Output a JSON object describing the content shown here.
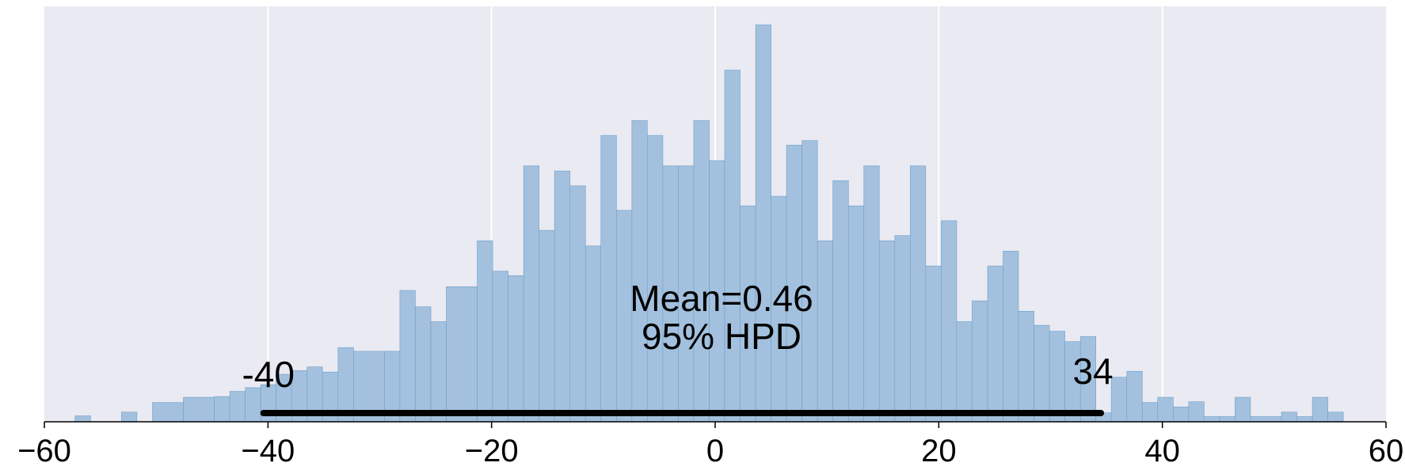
{
  "chart_data": {
    "type": "bar",
    "title": "",
    "xlabel": "",
    "ylabel": "",
    "xlim": [
      -60,
      60
    ],
    "ylim": [
      0,
      56
    ],
    "grid": true,
    "colors": {
      "background": "#eaeaf2",
      "bar_fill": "#a3c1de",
      "bar_edge": "#6f9fc8",
      "grid": "#ffffff",
      "hpd_line": "#000000"
    },
    "x_ticks": [
      -60,
      -40,
      -20,
      0,
      20,
      40,
      60
    ],
    "x_tick_labels": [
      "−60",
      "−40",
      "−20",
      "0",
      "20",
      "40",
      "60"
    ],
    "bins": [
      {
        "x0": -57.25,
        "x1": -55.87,
        "count": 0.8
      },
      {
        "x0": -53.1,
        "x1": -51.72,
        "count": 1.3
      },
      {
        "x0": -50.33,
        "x1": -47.57,
        "count": 2.6
      },
      {
        "x0": -47.57,
        "x1": -44.8,
        "count": 3.3
      },
      {
        "x0": -44.8,
        "x1": -43.42,
        "count": 3.4
      },
      {
        "x0": -43.42,
        "x1": -42.03,
        "count": 4.1
      },
      {
        "x0": -42.03,
        "x1": -40.65,
        "count": 4.6
      },
      {
        "x0": -40.65,
        "x1": -39.27,
        "count": 5.0
      },
      {
        "x0": -39.27,
        "x1": -37.88,
        "count": 6.4
      },
      {
        "x0": -37.88,
        "x1": -36.5,
        "count": 6.9
      },
      {
        "x0": -36.5,
        "x1": -35.12,
        "count": 7.4
      },
      {
        "x0": -35.12,
        "x1": -33.73,
        "count": 6.7
      },
      {
        "x0": -33.73,
        "x1": -32.35,
        "count": 10.0
      },
      {
        "x0": -32.35,
        "x1": -29.58,
        "count": 9.5
      },
      {
        "x0": -29.58,
        "x1": -28.2,
        "count": 9.5
      },
      {
        "x0": -28.2,
        "x1": -26.82,
        "count": 17.7
      },
      {
        "x0": -26.82,
        "x1": -25.43,
        "count": 15.5
      },
      {
        "x0": -25.43,
        "x1": -24.05,
        "count": 13.5
      },
      {
        "x0": -24.05,
        "x1": -21.28,
        "count": 18.2
      },
      {
        "x0": -21.28,
        "x1": -19.9,
        "count": 24.4
      },
      {
        "x0": -19.9,
        "x1": -18.52,
        "count": 20.3
      },
      {
        "x0": -18.52,
        "x1": -17.13,
        "count": 19.7
      },
      {
        "x0": -17.13,
        "x1": -15.75,
        "count": 34.5
      },
      {
        "x0": -15.75,
        "x1": -14.37,
        "count": 25.8
      },
      {
        "x0": -14.37,
        "x1": -12.98,
        "count": 33.8
      },
      {
        "x0": -12.98,
        "x1": -11.6,
        "count": 31.8
      },
      {
        "x0": -11.6,
        "x1": -10.22,
        "count": 23.7
      },
      {
        "x0": -10.22,
        "x1": -8.83,
        "count": 38.6
      },
      {
        "x0": -8.83,
        "x1": -7.45,
        "count": 28.5
      },
      {
        "x0": -7.45,
        "x1": -6.07,
        "count": 40.6
      },
      {
        "x0": -6.07,
        "x1": -4.68,
        "count": 38.6
      },
      {
        "x0": -4.68,
        "x1": -3.3,
        "count": 34.5
      },
      {
        "x0": -3.3,
        "x1": -1.92,
        "count": 34.5
      },
      {
        "x0": -1.92,
        "x1": -0.53,
        "count": 40.6
      },
      {
        "x0": -0.53,
        "x1": 0.85,
        "count": 35.2
      },
      {
        "x0": 0.85,
        "x1": 2.23,
        "count": 47.4
      },
      {
        "x0": 2.23,
        "x1": 3.62,
        "count": 29.1
      },
      {
        "x0": 3.62,
        "x1": 5.0,
        "count": 53.5
      },
      {
        "x0": 5.0,
        "x1": 6.38,
        "count": 30.4
      },
      {
        "x0": 6.38,
        "x1": 7.77,
        "count": 37.3
      },
      {
        "x0": 7.77,
        "x1": 9.15,
        "count": 37.9
      },
      {
        "x0": 9.15,
        "x1": 10.53,
        "count": 24.4
      },
      {
        "x0": 10.53,
        "x1": 11.92,
        "count": 32.5
      },
      {
        "x0": 11.92,
        "x1": 13.3,
        "count": 29.1
      },
      {
        "x0": 13.3,
        "x1": 14.68,
        "count": 34.5
      },
      {
        "x0": 14.68,
        "x1": 16.07,
        "count": 24.4
      },
      {
        "x0": 16.07,
        "x1": 17.45,
        "count": 25.1
      },
      {
        "x0": 17.45,
        "x1": 18.83,
        "count": 34.5
      },
      {
        "x0": 18.83,
        "x1": 20.22,
        "count": 21.0
      },
      {
        "x0": 20.22,
        "x1": 21.6,
        "count": 27.1
      },
      {
        "x0": 21.6,
        "x1": 22.98,
        "count": 13.5
      },
      {
        "x0": 22.98,
        "x1": 24.37,
        "count": 16.3
      },
      {
        "x0": 24.37,
        "x1": 25.75,
        "count": 21.0
      },
      {
        "x0": 25.75,
        "x1": 27.13,
        "count": 23.0
      },
      {
        "x0": 27.13,
        "x1": 28.52,
        "count": 14.9
      },
      {
        "x0": 28.52,
        "x1": 29.9,
        "count": 13.0
      },
      {
        "x0": 29.9,
        "x1": 31.28,
        "count": 12.2
      },
      {
        "x0": 31.28,
        "x1": 32.67,
        "count": 10.8
      },
      {
        "x0": 32.67,
        "x1": 34.05,
        "count": 11.5
      },
      {
        "x0": 34.05,
        "x1": 35.43,
        "count": 1.2
      },
      {
        "x0": 35.43,
        "x1": 36.82,
        "count": 6.0
      },
      {
        "x0": 36.82,
        "x1": 38.2,
        "count": 6.8
      },
      {
        "x0": 38.2,
        "x1": 39.58,
        "count": 2.6
      },
      {
        "x0": 39.58,
        "x1": 40.97,
        "count": 3.3
      },
      {
        "x0": 40.97,
        "x1": 42.35,
        "count": 2.0
      },
      {
        "x0": 42.35,
        "x1": 43.73,
        "count": 2.7
      },
      {
        "x0": 43.73,
        "x1": 45.12,
        "count": 0.7
      },
      {
        "x0": 45.12,
        "x1": 46.5,
        "count": 0.7
      },
      {
        "x0": 46.5,
        "x1": 47.88,
        "count": 3.3
      },
      {
        "x0": 47.88,
        "x1": 50.65,
        "count": 0.7
      },
      {
        "x0": 50.65,
        "x1": 52.03,
        "count": 1.3
      },
      {
        "x0": 52.03,
        "x1": 53.42,
        "count": 0.7
      },
      {
        "x0": 53.42,
        "x1": 54.8,
        "count": 3.3
      },
      {
        "x0": 54.8,
        "x1": 56.18,
        "count": 1.3
      }
    ],
    "mean_label": "Mean=0.46",
    "hpd": {
      "label": "95% HPD",
      "low": -40.4,
      "high": 34.5,
      "low_label": "-40",
      "high_label": "34"
    }
  }
}
